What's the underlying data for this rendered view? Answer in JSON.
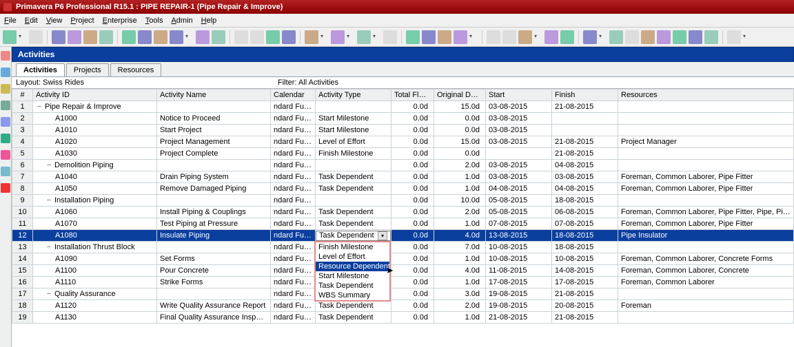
{
  "window": {
    "title": "Primavera P6 Professional R15.1 : PIPE REPAIR-1 (Pipe Repair & Improve)"
  },
  "menus": [
    "File",
    "Edit",
    "View",
    "Project",
    "Enterprise",
    "Tools",
    "Admin",
    "Help"
  ],
  "sidebar_icons": [
    {
      "name": "db",
      "color": "#e88"
    },
    {
      "name": "calendar",
      "color": "#6ad"
    },
    {
      "name": "flag",
      "color": "#cb5"
    },
    {
      "name": "task",
      "color": "#7a9"
    },
    {
      "name": "lock",
      "color": "#89e"
    },
    {
      "name": "chart",
      "color": "#3a8"
    },
    {
      "name": "note",
      "color": "#e59"
    },
    {
      "name": "print",
      "color": "#7bc"
    },
    {
      "name": "alert",
      "color": "#e33"
    }
  ],
  "pane_title": "Activities",
  "tabs": [
    {
      "label": "Activities",
      "active": true
    },
    {
      "label": "Projects",
      "active": false
    },
    {
      "label": "Resources",
      "active": false
    }
  ],
  "top_info": {
    "layout_label": "Layout: Swiss Rides",
    "filter_label": "Filter: All Activities"
  },
  "columns": [
    "#",
    "Activity ID",
    "Activity Name",
    "Calendar",
    "Activity Type",
    "Total Float",
    "Original Duration",
    "Start",
    "Finish",
    "Resources"
  ],
  "rows": [
    {
      "n": 1,
      "indent": 0,
      "exp": "−",
      "id": "Pipe Repair & Improve",
      "name": "",
      "cal": "ndard Full Time",
      "typ": "",
      "tf": "0.0d",
      "od": "15.0d",
      "st": "03-08-2015",
      "fn": "21-08-2015",
      "res": ""
    },
    {
      "n": 2,
      "indent": 2,
      "id": "A1000",
      "name": "Notice to Proceed",
      "cal": "ndard Full Time",
      "typ": "Start Milestone",
      "tf": "0.0d",
      "od": "0.0d",
      "st": "03-08-2015",
      "fn": "",
      "res": ""
    },
    {
      "n": 3,
      "indent": 2,
      "id": "A1010",
      "name": "Start Project",
      "cal": "ndard Full Time",
      "typ": "Start Milestone",
      "tf": "0.0d",
      "od": "0.0d",
      "st": "03-08-2015",
      "fn": "",
      "res": ""
    },
    {
      "n": 4,
      "indent": 2,
      "id": "A1020",
      "name": "Project Management",
      "cal": "ndard Full Time",
      "typ": "Level of Effort",
      "tf": "0.0d",
      "od": "15.0d",
      "st": "03-08-2015",
      "fn": "21-08-2015",
      "res": "Project Manager"
    },
    {
      "n": 5,
      "indent": 2,
      "id": "A1030",
      "name": "Project Complete",
      "cal": "ndard Full Time",
      "typ": "Finish Milestone",
      "tf": "0.0d",
      "od": "0.0d",
      "st": "",
      "fn": "21-08-2015",
      "res": ""
    },
    {
      "n": 6,
      "indent": 1,
      "exp": "−",
      "id": "Demolition Piping",
      "name": "",
      "cal": "ndard Full Time",
      "typ": "",
      "tf": "0.0d",
      "od": "2.0d",
      "st": "03-08-2015",
      "fn": "04-08-2015",
      "res": ""
    },
    {
      "n": 7,
      "indent": 2,
      "id": "A1040",
      "name": "Drain Piping System",
      "cal": "ndard Full Time",
      "typ": "Task Dependent",
      "tf": "0.0d",
      "od": "1.0d",
      "st": "03-08-2015",
      "fn": "03-08-2015",
      "res": "Foreman, Common Laborer, Pipe Fitter"
    },
    {
      "n": 8,
      "indent": 2,
      "id": "A1050",
      "name": "Remove Damaged Piping",
      "cal": "ndard Full Time",
      "typ": "Task Dependent",
      "tf": "0.0d",
      "od": "1.0d",
      "st": "04-08-2015",
      "fn": "04-08-2015",
      "res": "Foreman, Common Laborer, Pipe Fitter"
    },
    {
      "n": 9,
      "indent": 1,
      "exp": "−",
      "id": "Installation Piping",
      "name": "",
      "cal": "ndard Full Time",
      "typ": "",
      "tf": "0.0d",
      "od": "10.0d",
      "st": "05-08-2015",
      "fn": "18-08-2015",
      "res": ""
    },
    {
      "n": 10,
      "indent": 2,
      "id": "A1060",
      "name": "Install Piping & Couplings",
      "cal": "ndard Full Time",
      "typ": "Task Dependent",
      "tf": "0.0d",
      "od": "2.0d",
      "st": "05-08-2015",
      "fn": "06-08-2015",
      "res": "Foreman, Common Laborer, Pipe Fitter, Pipe, Pipe Coupling"
    },
    {
      "n": 11,
      "indent": 2,
      "id": "A1070",
      "name": "Test Piping at Pressure",
      "cal": "ndard Full Time",
      "typ": "Task Dependent",
      "tf": "0.0d",
      "od": "1.0d",
      "st": "07-08-2015",
      "fn": "07-08-2015",
      "res": "Foreman, Common Laborer, Pipe Fitter"
    },
    {
      "n": 12,
      "indent": 2,
      "id": "A1080",
      "name": "Insulate Piping",
      "cal": "ndard Full Time",
      "typ": "Task Dependent",
      "tf": "0.0d",
      "od": "4.0d",
      "st": "13-08-2015",
      "fn": "18-08-2015",
      "res": "Pipe Insulator",
      "sel": true,
      "dd": true
    },
    {
      "n": 13,
      "indent": 1,
      "exp": "−",
      "id": "Installation Thrust Block",
      "name": "",
      "cal": "ndard Full Time",
      "typ": "",
      "tf": "0.0d",
      "od": "7.0d",
      "st": "10-08-2015",
      "fn": "18-08-2015",
      "res": ""
    },
    {
      "n": 14,
      "indent": 2,
      "id": "A1090",
      "name": "Set Forms",
      "cal": "ndard Full Time",
      "typ": "Task Dependent",
      "tf": "0.0d",
      "od": "1.0d",
      "st": "10-08-2015",
      "fn": "10-08-2015",
      "res": "Foreman, Common Laborer, Concrete Forms"
    },
    {
      "n": 15,
      "indent": 2,
      "id": "A1100",
      "name": "Pour Concrete",
      "cal": "ndard Full Time",
      "typ": "Task Dependent",
      "tf": "0.0d",
      "od": "4.0d",
      "st": "11-08-2015",
      "fn": "14-08-2015",
      "res": "Foreman, Common Laborer, Concrete"
    },
    {
      "n": 16,
      "indent": 2,
      "id": "A1110",
      "name": "Strike Forms",
      "cal": "ndard Full Time",
      "typ": "Task Dependent",
      "tf": "0.0d",
      "od": "1.0d",
      "st": "17-08-2015",
      "fn": "17-08-2015",
      "res": "Foreman, Common Laborer"
    },
    {
      "n": 17,
      "indent": 1,
      "exp": "−",
      "id": "Quality Assurance",
      "name": "",
      "cal": "ndard Full Time",
      "typ": "",
      "tf": "0.0d",
      "od": "3.0d",
      "st": "19-08-2015",
      "fn": "21-08-2015",
      "res": ""
    },
    {
      "n": 18,
      "indent": 2,
      "id": "A1120",
      "name": "Write Quality Assurance Report",
      "cal": "ndard Full Time",
      "typ": "Task Dependent",
      "tf": "0.0d",
      "od": "2.0d",
      "st": "19-08-2015",
      "fn": "20-08-2015",
      "res": "Foreman"
    },
    {
      "n": 19,
      "indent": 2,
      "id": "A1130",
      "name": "Final Quality Assurance Inspection",
      "cal": "ndard Full Time",
      "typ": "Task Dependent",
      "tf": "0.0d",
      "od": "1.0d",
      "st": "21-08-2015",
      "fn": "21-08-2015",
      "res": ""
    }
  ],
  "dropdown": {
    "current": "Task Dependent",
    "options": [
      "Finish Milestone",
      "Level of Effort",
      "Resource Dependent",
      "Start Milestone",
      "Task Dependent",
      "WBS Summary"
    ],
    "highlight": "Resource Dependent"
  }
}
